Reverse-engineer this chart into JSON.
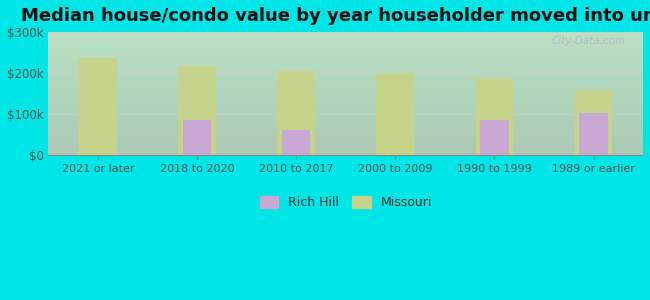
{
  "title": "Median house/condo value by year householder moved into unit",
  "categories": [
    "2021 or later",
    "2018 to 2020",
    "2010 to 2017",
    "2000 to 2009",
    "1990 to 1999",
    "1989 or earlier"
  ],
  "rich_hill": [
    0,
    85000,
    62000,
    0,
    85000,
    102000
  ],
  "missouri": [
    238000,
    218000,
    205000,
    200000,
    188000,
    158000
  ],
  "rich_hill_color": "#c9a8d4",
  "missouri_color": "#c5d48a",
  "background_outer": "#00e5e5",
  "ylim": [
    0,
    300000
  ],
  "yticks": [
    0,
    100000,
    200000,
    300000
  ],
  "ytick_labels": [
    "$0",
    "$100k",
    "$200k",
    "$300k"
  ],
  "bar_width": 0.38,
  "title_fontsize": 13,
  "watermark": "City-Data.com"
}
